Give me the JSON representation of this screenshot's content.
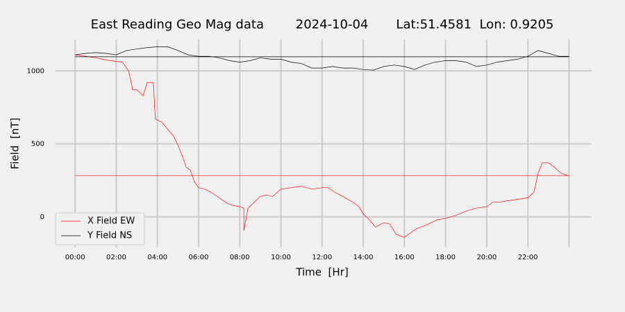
{
  "chart_data": {
    "type": "line",
    "title": "East Reading Geo Mag data        2024-10-04       Lat:51.4581  Lon: 0.9205",
    "x_label": "Time  [Hr]",
    "y_label": "Field  [nT]",
    "xlim": [
      -0.95,
      25.1
    ],
    "ylim": [
      -210,
      1215
    ],
    "xticks": [
      {
        "value": 0,
        "label": "00:00"
      },
      {
        "value": 2,
        "label": "02:00"
      },
      {
        "value": 4,
        "label": "04:00"
      },
      {
        "value": 6,
        "label": "06:00"
      },
      {
        "value": 8,
        "label": "08:00"
      },
      {
        "value": 10,
        "label": "10:00"
      },
      {
        "value": 12,
        "label": "12:00"
      },
      {
        "value": 14,
        "label": "14:00"
      },
      {
        "value": 16,
        "label": "16:00"
      },
      {
        "value": 18,
        "label": "18:00"
      },
      {
        "value": 20,
        "label": "20:00"
      },
      {
        "value": 22,
        "label": "22:00"
      },
      {
        "value": 24,
        "label": null
      }
    ],
    "yticks": [
      0,
      500,
      1000
    ],
    "grid": true,
    "legend": "lower left",
    "series": [
      {
        "name": "X Field EW",
        "color": "red",
        "mean": 283,
        "x": [
          0,
          0.5,
          1,
          1.5,
          2,
          2.3,
          2.6,
          2.8,
          3.0,
          3.3,
          3.5,
          3.8,
          3.9,
          4.2,
          4.5,
          4.8,
          5,
          5.2,
          5.4,
          5.6,
          5.8,
          6,
          6.3,
          6.6,
          7,
          7.3,
          7.6,
          8,
          8.2,
          8.2,
          8.4,
          8.7,
          9,
          9.3,
          9.6,
          10,
          10.5,
          11,
          11.5,
          12,
          12.3,
          12.6,
          13,
          13.5,
          13.8,
          14,
          14.3,
          14.6,
          15,
          15.3,
          15.6,
          16,
          16.3,
          16.6,
          17,
          17.3,
          17.6,
          18,
          18.5,
          19,
          19.5,
          20,
          20.3,
          20.6,
          21,
          21.5,
          22,
          22.3,
          22.5,
          22.7,
          23,
          23.3,
          23.6,
          24
        ],
        "values": [
          1110,
          1100,
          1090,
          1075,
          1065,
          1060,
          1000,
          870,
          870,
          830,
          920,
          920,
          670,
          650,
          600,
          550,
          490,
          420,
          340,
          320,
          240,
          200,
          190,
          170,
          130,
          100,
          80,
          70,
          60,
          -95,
          60,
          100,
          140,
          150,
          140,
          190,
          200,
          210,
          190,
          200,
          200,
          170,
          140,
          100,
          70,
          20,
          -20,
          -70,
          -40,
          -50,
          -120,
          -140,
          -110,
          -80,
          -60,
          -40,
          -20,
          -10,
          10,
          40,
          60,
          70,
          100,
          100,
          110,
          120,
          130,
          170,
          300,
          370,
          370,
          340,
          300,
          280
        ]
      },
      {
        "name": "Y Field NS",
        "color": "black",
        "mean": 1097,
        "x": [
          0,
          0.5,
          1,
          1.5,
          2,
          2.5,
          3,
          3.5,
          4,
          4.5,
          5,
          5.5,
          6,
          6.5,
          7,
          7.5,
          8,
          8.5,
          9,
          9.5,
          10,
          10.5,
          11,
          11.5,
          12,
          12.5,
          13,
          13.5,
          14,
          14.5,
          15,
          15.5,
          16,
          16.5,
          17,
          17.5,
          18,
          18.5,
          19,
          19.5,
          20,
          20.5,
          21,
          21.5,
          22,
          22.5,
          23,
          23.5,
          24
        ],
        "values": [
          1110,
          1120,
          1125,
          1120,
          1110,
          1140,
          1150,
          1160,
          1165,
          1165,
          1140,
          1110,
          1100,
          1100,
          1090,
          1070,
          1060,
          1070,
          1090,
          1080,
          1080,
          1060,
          1050,
          1020,
          1020,
          1030,
          1020,
          1020,
          1010,
          1005,
          1030,
          1040,
          1030,
          1010,
          1040,
          1060,
          1070,
          1070,
          1060,
          1030,
          1040,
          1060,
          1070,
          1080,
          1100,
          1140,
          1120,
          1100,
          1100
        ]
      }
    ]
  }
}
